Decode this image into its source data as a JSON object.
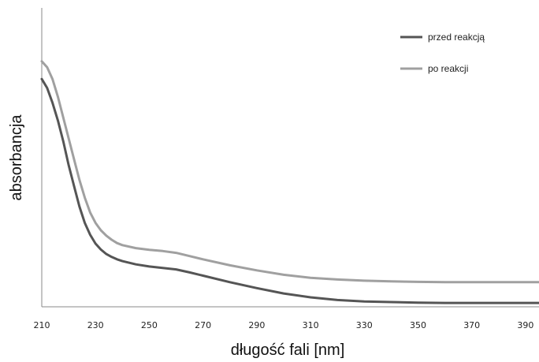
{
  "chart_data": {
    "type": "line",
    "xlabel": "długość fali [nm]",
    "ylabel": "absorbancja",
    "xlim": [
      210,
      395
    ],
    "ylim": [
      0,
      1
    ],
    "x_ticks": [
      "210",
      "230",
      "250",
      "270",
      "290",
      "310",
      "330",
      "350",
      "370",
      "390"
    ],
    "y_ticks_shown": false,
    "grid": false,
    "legend_position": "top-right",
    "series": [
      {
        "name": "przed reakcją",
        "color": "#555555",
        "x": [
          210,
          212,
          214,
          216,
          218,
          220,
          222,
          224,
          226,
          228,
          230,
          232,
          234,
          236,
          238,
          240,
          245,
          250,
          255,
          260,
          265,
          270,
          280,
          290,
          300,
          310,
          320,
          330,
          340,
          350,
          360,
          370,
          380,
          395
        ],
        "y": [
          0.76,
          0.73,
          0.68,
          0.62,
          0.55,
          0.47,
          0.4,
          0.33,
          0.275,
          0.235,
          0.205,
          0.185,
          0.17,
          0.16,
          0.152,
          0.146,
          0.135,
          0.128,
          0.123,
          0.118,
          0.108,
          0.097,
          0.075,
          0.055,
          0.037,
          0.024,
          0.015,
          0.01,
          0.008,
          0.006,
          0.005,
          0.005,
          0.005,
          0.005
        ]
      },
      {
        "name": "po reakcji",
        "color": "#a0a0a0",
        "x": [
          210,
          212,
          214,
          216,
          218,
          220,
          222,
          224,
          226,
          228,
          230,
          232,
          234,
          236,
          238,
          240,
          245,
          250,
          255,
          260,
          265,
          270,
          280,
          290,
          300,
          310,
          320,
          330,
          340,
          350,
          360,
          370,
          380,
          395
        ],
        "y": [
          0.82,
          0.8,
          0.76,
          0.7,
          0.63,
          0.56,
          0.49,
          0.42,
          0.36,
          0.31,
          0.275,
          0.25,
          0.232,
          0.218,
          0.207,
          0.2,
          0.19,
          0.184,
          0.18,
          0.174,
          0.163,
          0.152,
          0.132,
          0.115,
          0.1,
          0.09,
          0.084,
          0.08,
          0.078,
          0.076,
          0.075,
          0.075,
          0.075,
          0.075
        ]
      }
    ]
  }
}
